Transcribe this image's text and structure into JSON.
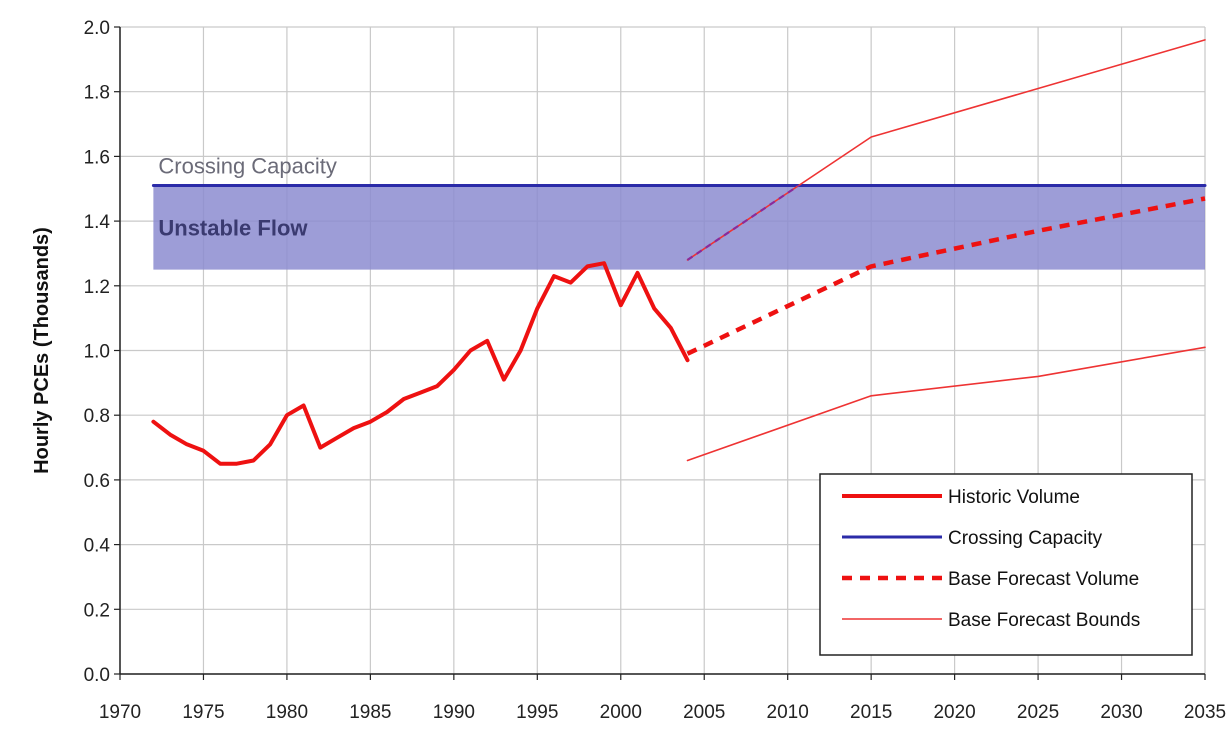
{
  "chart_data": {
    "type": "line",
    "ylabel": "Hourly PCEs (Thousands)",
    "xlim": [
      1970,
      2035
    ],
    "ylim": [
      0.0,
      2.0
    ],
    "x_ticks": [
      "1970",
      "1975",
      "1980",
      "1985",
      "1990",
      "1995",
      "2000",
      "2005",
      "2010",
      "2015",
      "2020",
      "2025",
      "2030",
      "2035"
    ],
    "y_ticks": [
      "0.0",
      "0.2",
      "0.4",
      "0.6",
      "0.8",
      "1.0",
      "1.2",
      "1.4",
      "1.6",
      "1.8",
      "2.0"
    ],
    "grid": true,
    "legend_position": "bottom-right",
    "annotations": {
      "capacity_label": "Crossing Capacity",
      "band_label": "Unstable Flow"
    },
    "unstable_flow_band": {
      "from": 1.25,
      "to": 1.51,
      "color": "#8c8cd0"
    },
    "series": [
      {
        "name": "Historic Volume",
        "color": "#ee1111",
        "style": "solid-thick",
        "points": [
          [
            1972,
            0.78
          ],
          [
            1973,
            0.74
          ],
          [
            1974,
            0.71
          ],
          [
            1975,
            0.69
          ],
          [
            1976,
            0.65
          ],
          [
            1977,
            0.65
          ],
          [
            1978,
            0.66
          ],
          [
            1979,
            0.71
          ],
          [
            1980,
            0.8
          ],
          [
            1981,
            0.83
          ],
          [
            1982,
            0.7
          ],
          [
            1983,
            0.73
          ],
          [
            1984,
            0.76
          ],
          [
            1985,
            0.78
          ],
          [
            1986,
            0.81
          ],
          [
            1987,
            0.85
          ],
          [
            1988,
            0.87
          ],
          [
            1989,
            0.89
          ],
          [
            1990,
            0.94
          ],
          [
            1991,
            1.0
          ],
          [
            1992,
            1.03
          ],
          [
            1993,
            0.91
          ],
          [
            1994,
            1.0
          ],
          [
            1995,
            1.13
          ],
          [
            1996,
            1.23
          ],
          [
            1997,
            1.21
          ],
          [
            1998,
            1.26
          ],
          [
            1999,
            1.27
          ],
          [
            2000,
            1.14
          ],
          [
            2001,
            1.24
          ],
          [
            2002,
            1.13
          ],
          [
            2003,
            1.07
          ],
          [
            2004,
            0.97
          ]
        ]
      },
      {
        "name": "Crossing Capacity",
        "color": "#2b2ba8",
        "style": "solid",
        "points": [
          [
            1972,
            1.51
          ],
          [
            2035,
            1.51
          ]
        ]
      },
      {
        "name": "Base Forecast Volume",
        "color": "#ee1111",
        "style": "dashed",
        "points": [
          [
            2004,
            0.99
          ],
          [
            2015,
            1.26
          ],
          [
            2025,
            1.37
          ],
          [
            2035,
            1.47
          ]
        ]
      },
      {
        "name": "Base Forecast Bounds",
        "color": "#ee3333",
        "style": "thin",
        "points": [
          [
            2004,
            1.28
          ],
          [
            2015,
            1.66
          ],
          [
            2025,
            1.81
          ],
          [
            2035,
            1.96
          ]
        ]
      },
      {
        "name": "",
        "color": "#ee3333",
        "style": "thin",
        "points": [
          [
            2004,
            0.66
          ],
          [
            2015,
            0.86
          ],
          [
            2025,
            0.92
          ],
          [
            2035,
            1.01
          ]
        ]
      }
    ],
    "legend": [
      {
        "label": "Historic Volume",
        "color": "#ee1111",
        "style": "solid-thick"
      },
      {
        "label": "Crossing Capacity",
        "color": "#2b2ba8",
        "style": "solid"
      },
      {
        "label": "Base Forecast Volume",
        "color": "#ee1111",
        "style": "dashed"
      },
      {
        "label": "Base Forecast Bounds",
        "color": "#ee3333",
        "style": "thin"
      }
    ]
  }
}
